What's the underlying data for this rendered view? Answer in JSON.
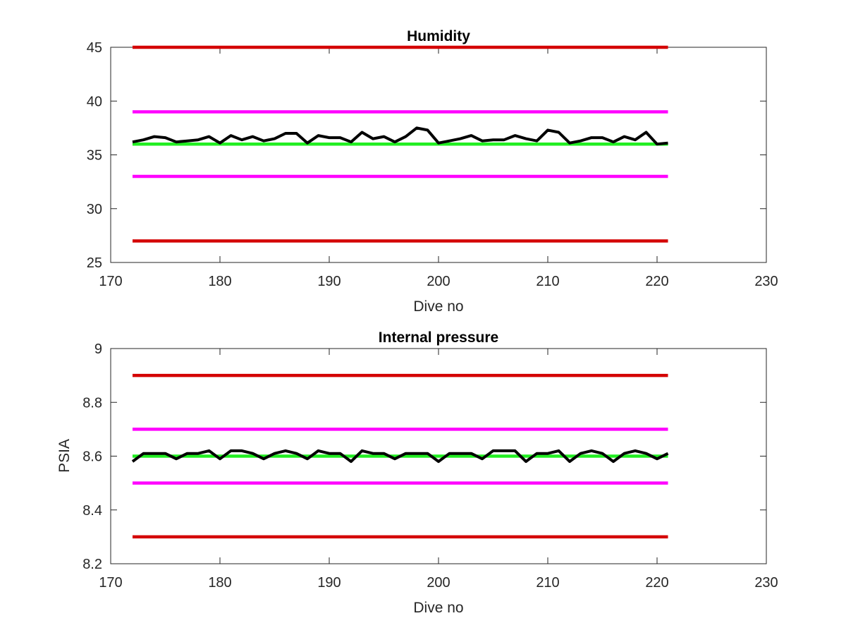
{
  "chart_data": [
    {
      "type": "line",
      "title": "Humidity",
      "xlabel": "Dive no",
      "ylabel": "",
      "xlim": [
        170,
        230
      ],
      "ylim": [
        25,
        45
      ],
      "xticks": [
        170,
        180,
        190,
        200,
        210,
        220,
        230
      ],
      "yticks": [
        25,
        30,
        35,
        40,
        45
      ],
      "grid": false,
      "series": [
        {
          "color": "#000000",
          "x": [
            172,
            173,
            174,
            175,
            176,
            177,
            178,
            179,
            180,
            181,
            182,
            183,
            184,
            185,
            186,
            187,
            188,
            189,
            190,
            191,
            192,
            193,
            194,
            195,
            196,
            197,
            198,
            199,
            200,
            201,
            202,
            203,
            204,
            205,
            206,
            207,
            208,
            209,
            210,
            211,
            212,
            213,
            214,
            215,
            216,
            217,
            218,
            219,
            220,
            221
          ],
          "y": [
            36.2,
            36.4,
            36.7,
            36.6,
            36.2,
            36.3,
            36.4,
            36.7,
            36.1,
            36.8,
            36.4,
            36.7,
            36.3,
            36.5,
            37.0,
            37.0,
            36.1,
            36.8,
            36.6,
            36.6,
            36.2,
            37.1,
            36.5,
            36.7,
            36.2,
            36.7,
            37.5,
            37.3,
            36.1,
            36.3,
            36.5,
            36.8,
            36.3,
            36.4,
            36.4,
            36.8,
            36.5,
            36.3,
            37.3,
            37.1,
            36.1,
            36.3,
            36.6,
            36.6,
            36.2,
            36.7,
            36.4,
            37.1,
            36.0,
            36.1
          ]
        },
        {
          "color": "#d40000",
          "x": [
            172,
            221
          ],
          "y": [
            45,
            45
          ]
        },
        {
          "color": "#ff00ff",
          "x": [
            172,
            221
          ],
          "y": [
            39,
            39
          ]
        },
        {
          "color": "#22ee22",
          "x": [
            172,
            221
          ],
          "y": [
            36,
            36
          ]
        },
        {
          "color": "#ff00ff",
          "x": [
            172,
            221
          ],
          "y": [
            33,
            33
          ]
        },
        {
          "color": "#d40000",
          "x": [
            172,
            221
          ],
          "y": [
            27,
            27
          ]
        }
      ]
    },
    {
      "type": "line",
      "title": "Internal pressure",
      "xlabel": "Dive no",
      "ylabel": "PSIA",
      "xlim": [
        170,
        230
      ],
      "ylim": [
        8.2,
        9
      ],
      "xticks": [
        170,
        180,
        190,
        200,
        210,
        220,
        230
      ],
      "yticks": [
        8.2,
        8.4,
        8.6,
        8.8,
        9
      ],
      "grid": false,
      "series": [
        {
          "color": "#000000",
          "x": [
            172,
            173,
            174,
            175,
            176,
            177,
            178,
            179,
            180,
            181,
            182,
            183,
            184,
            185,
            186,
            187,
            188,
            189,
            190,
            191,
            192,
            193,
            194,
            195,
            196,
            197,
            198,
            199,
            200,
            201,
            202,
            203,
            204,
            205,
            206,
            207,
            208,
            209,
            210,
            211,
            212,
            213,
            214,
            215,
            216,
            217,
            218,
            219,
            220,
            221
          ],
          "y": [
            8.58,
            8.61,
            8.61,
            8.61,
            8.59,
            8.61,
            8.61,
            8.62,
            8.59,
            8.62,
            8.62,
            8.61,
            8.59,
            8.61,
            8.62,
            8.61,
            8.59,
            8.62,
            8.61,
            8.61,
            8.58,
            8.62,
            8.61,
            8.61,
            8.59,
            8.61,
            8.61,
            8.61,
            8.58,
            8.61,
            8.61,
            8.61,
            8.59,
            8.62,
            8.62,
            8.62,
            8.58,
            8.61,
            8.61,
            8.62,
            8.58,
            8.61,
            8.62,
            8.61,
            8.58,
            8.61,
            8.62,
            8.61,
            8.59,
            8.61
          ]
        },
        {
          "color": "#d40000",
          "x": [
            172,
            221
          ],
          "y": [
            8.9,
            8.9
          ]
        },
        {
          "color": "#ff00ff",
          "x": [
            172,
            221
          ],
          "y": [
            8.7,
            8.7
          ]
        },
        {
          "color": "#22ee22",
          "x": [
            172,
            221
          ],
          "y": [
            8.6,
            8.6
          ]
        },
        {
          "color": "#ff00ff",
          "x": [
            172,
            221
          ],
          "y": [
            8.5,
            8.5
          ]
        },
        {
          "color": "#d40000",
          "x": [
            172,
            221
          ],
          "y": [
            8.3,
            8.3
          ]
        }
      ]
    }
  ]
}
